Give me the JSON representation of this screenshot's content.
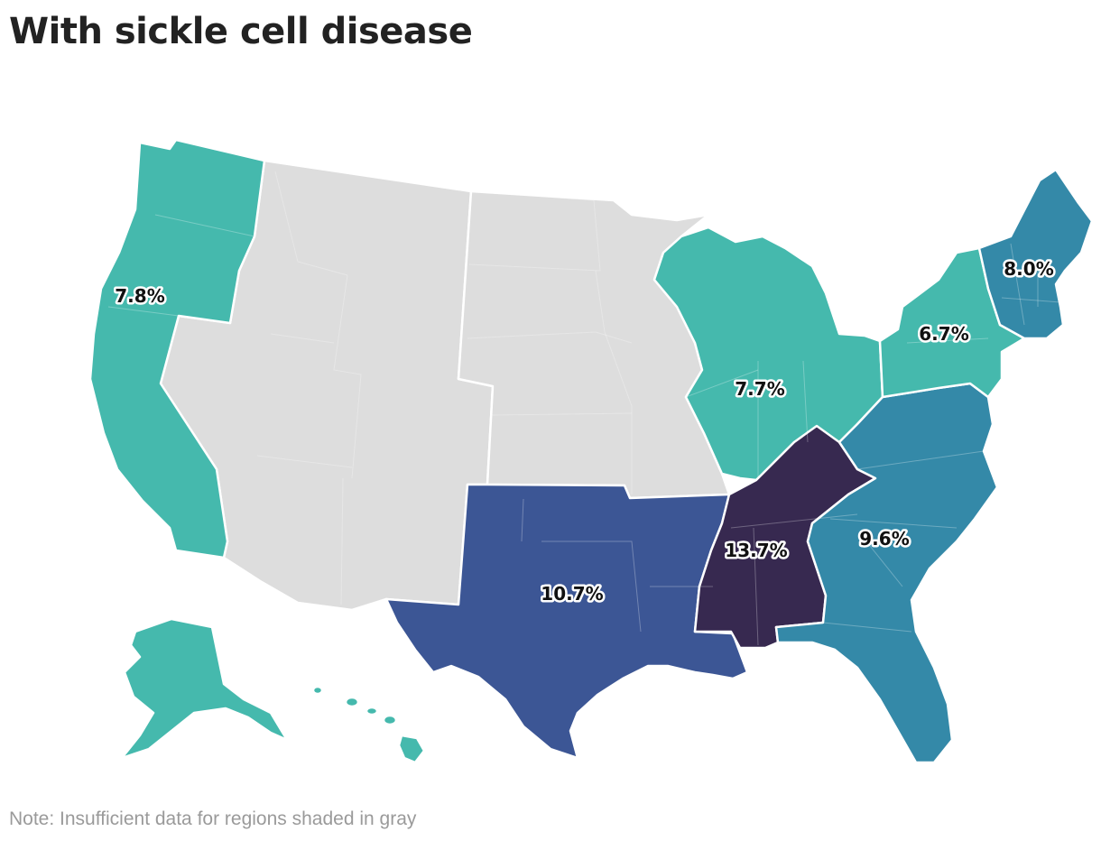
{
  "title": "With sickle cell disease",
  "note": "Note: Insufficient data for regions shaded in gray",
  "colors": {
    "no_data": "#dddddd",
    "teal": "#45b9ad",
    "blue_teal": "#3489a8",
    "blue": "#3c5695",
    "dark_purple": "#372950"
  },
  "regions": [
    {
      "id": "pacific",
      "label": "7.8%",
      "value": 7.8,
      "color": "#45b9ad"
    },
    {
      "id": "mountain",
      "label": "",
      "value": null,
      "color": "#dddddd"
    },
    {
      "id": "west-north-central",
      "label": "",
      "value": null,
      "color": "#dddddd"
    },
    {
      "id": "east-north-central",
      "label": "7.7%",
      "value": 7.7,
      "color": "#45b9ad"
    },
    {
      "id": "middle-atlantic",
      "label": "6.7%",
      "value": 6.7,
      "color": "#45b9ad"
    },
    {
      "id": "new-england",
      "label": "8.0%",
      "value": 8.0,
      "color": "#3489a8"
    },
    {
      "id": "south-atlantic",
      "label": "9.6%",
      "value": 9.6,
      "color": "#3489a8"
    },
    {
      "id": "east-south-central",
      "label": "13.7%",
      "value": 13.7,
      "color": "#372950"
    },
    {
      "id": "west-south-central",
      "label": "10.7%",
      "value": 10.7,
      "color": "#3c5695"
    }
  ]
}
